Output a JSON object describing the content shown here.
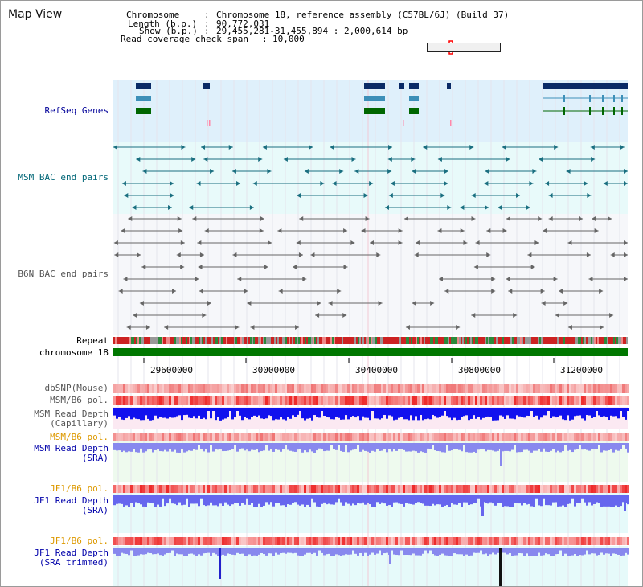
{
  "view_title": "Map View",
  "info": {
    "chromosome_key": "Chromosome",
    "chromosome_val": "Chromosome 18, reference assembly (C57BL/6J) (Build 37)",
    "length_key": "Length (b.p.)",
    "length_val": "90,772,031",
    "show_key": "Show (b.p.)",
    "show_val": "29,455,281-31,455,894 : 2,000,614 bp",
    "coverage_key": "Read coverage check span",
    "coverage_val": "10,000"
  },
  "tracks": {
    "refseq": "RefSeq Genes",
    "msm_bac": "MSM BAC end pairs",
    "b6n_bac": "B6N BAC end pairs",
    "repeat": "Repeat",
    "chromosome": "chromosome 18",
    "dbsnp": "dbSNP(Mouse)",
    "msm_b6_pol": "MSM/B6 pol.",
    "msm_depth_cap_1": "MSM Read Depth",
    "msm_depth_cap_2": "(Capillary)",
    "msm_b6_pol_2": "MSM/B6 pol.",
    "msm_depth_sra_1": "MSM Read Depth",
    "msm_depth_sra_2": "(SRA)",
    "jf1_b6_pol": "JF1/B6 pol.",
    "jf1_depth_sra_1": "JF1 Read Depth",
    "jf1_depth_sra_2": "(SRA)",
    "jf1_b6_pol_2": "JF1/B6 pol.",
    "jf1_depth_trim_1": "JF1 Read Depth",
    "jf1_depth_trim_2": "(SRA trimmed)"
  },
  "axis": {
    "ticks": [
      "29600000",
      "30000000",
      "30400000",
      "30800000",
      "31200000"
    ]
  },
  "colors": {
    "refseq_bg": "#dff0fb",
    "msm_bg": "#e8fafa",
    "b6n_bg": "#f6f7fa",
    "refseq_label": "#000099",
    "msm_label": "#006677",
    "b6n_label": "#555555",
    "chrom_bar": "#007700",
    "pol_label": "#dd9900",
    "depth_label": "#0000aa",
    "depth_cap": "#1111ee",
    "depth_sra": "#8888ee",
    "depth_jf1": "#6666ee"
  }
}
